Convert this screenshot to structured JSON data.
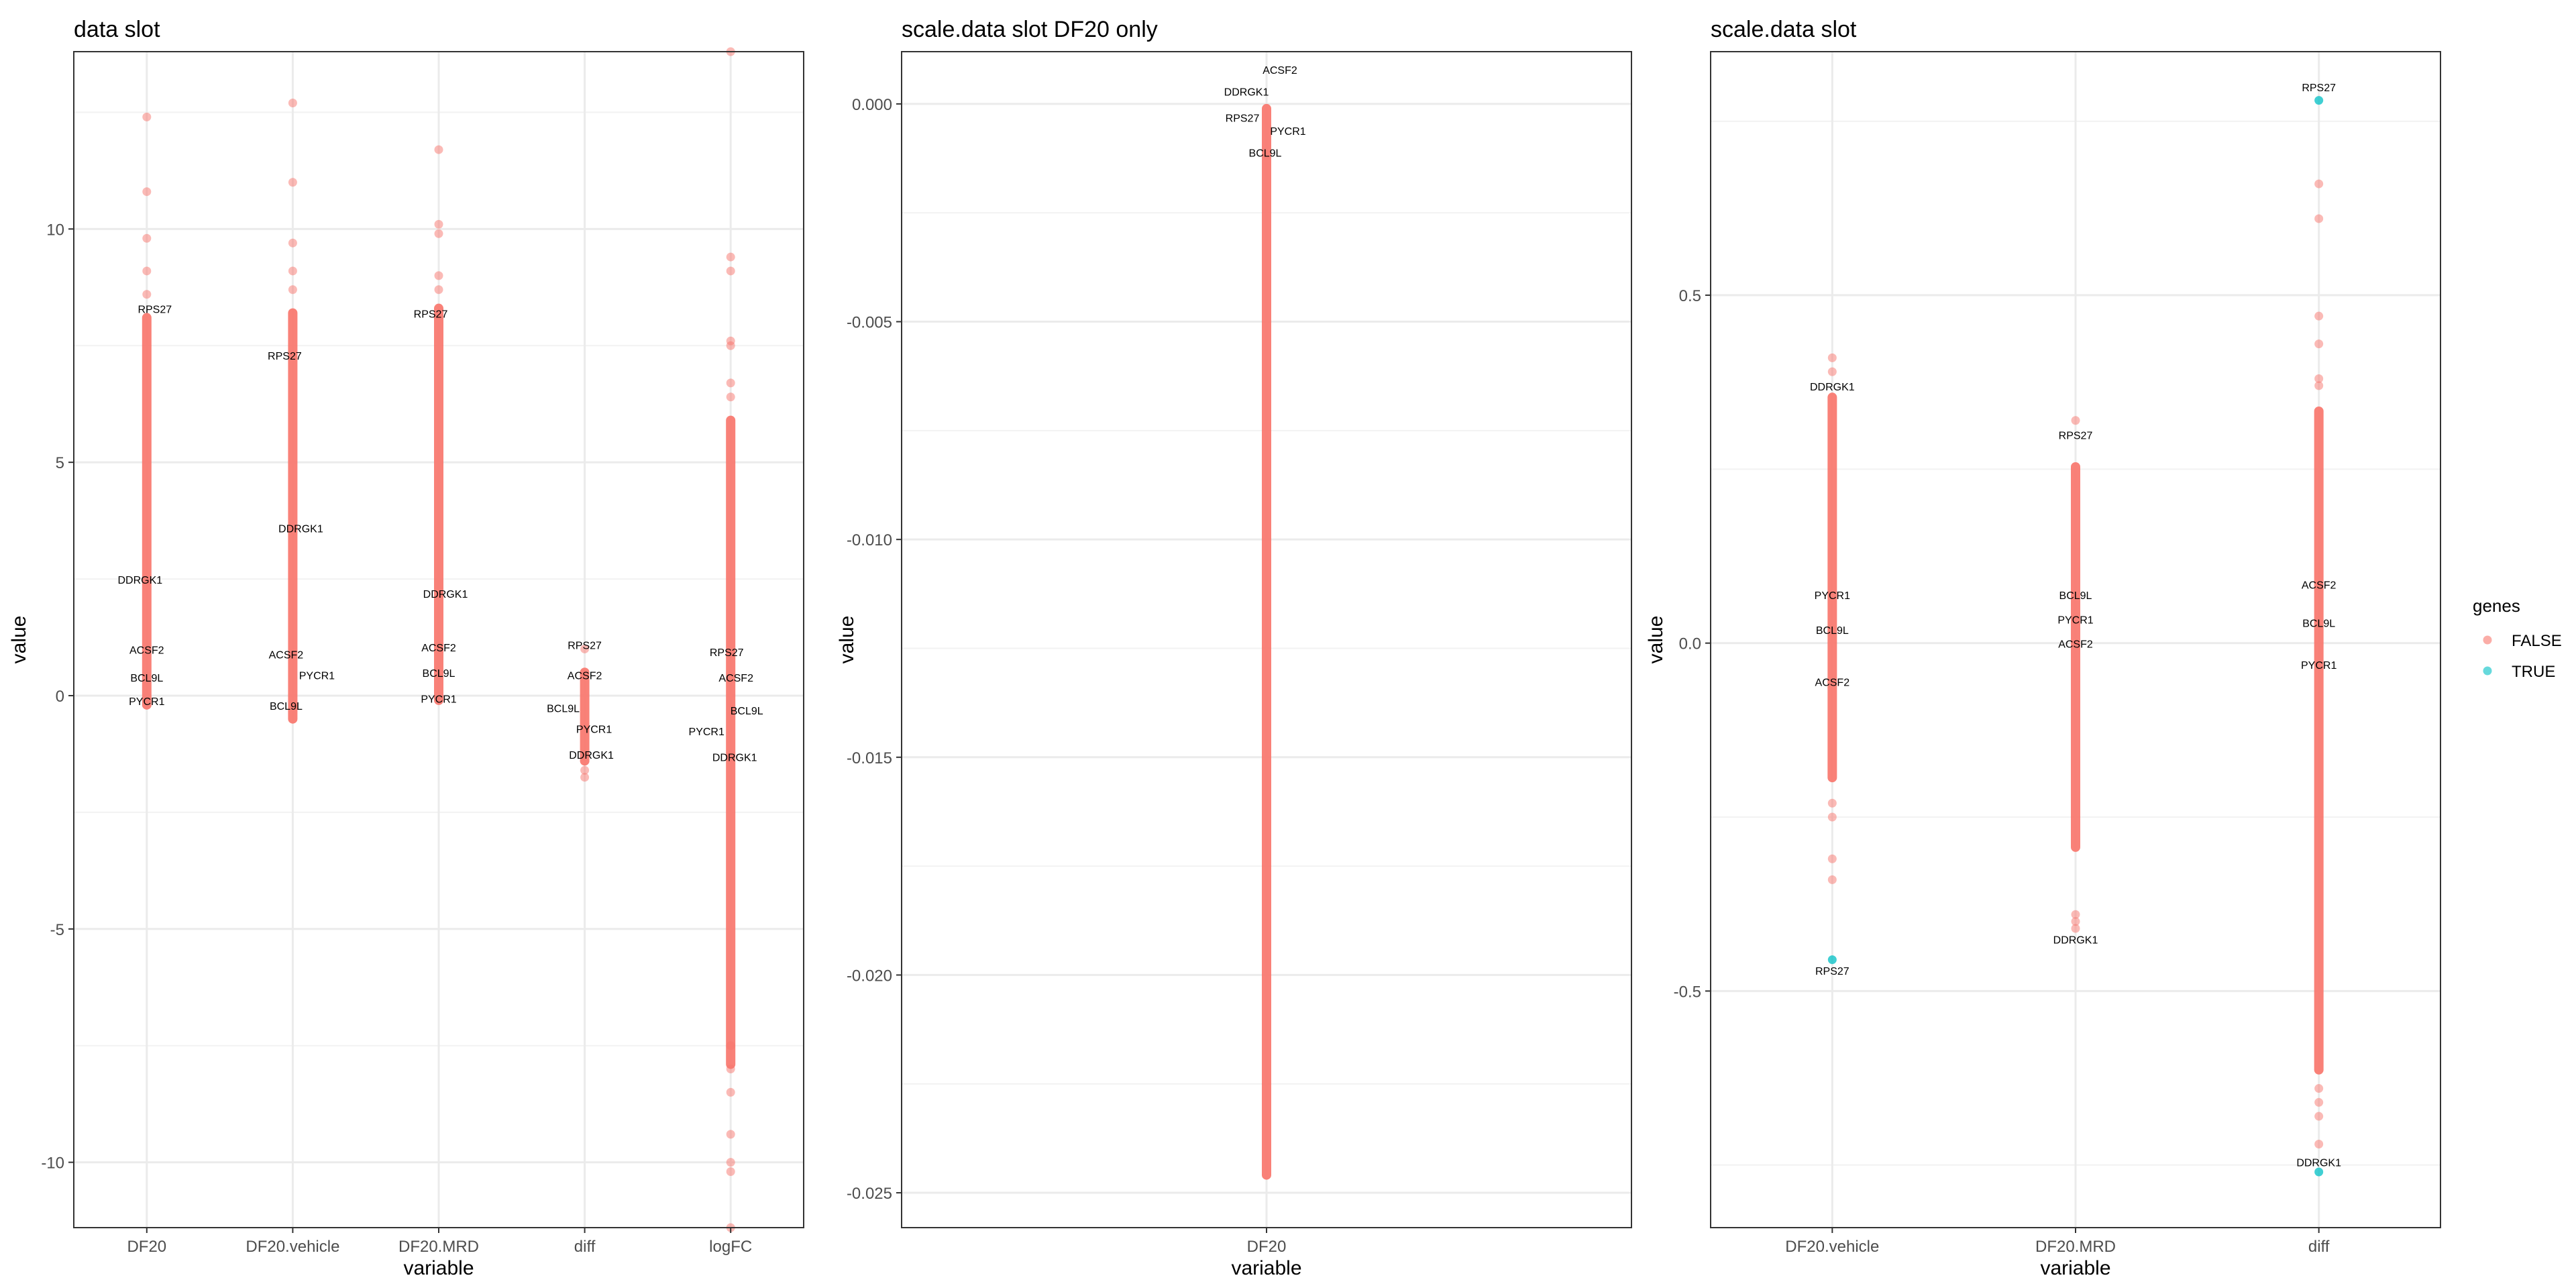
{
  "legend": {
    "title": "genes",
    "placement": "right",
    "entries": [
      {
        "label": "FALSE",
        "color": "#F8766D"
      },
      {
        "label": "TRUE",
        "color": "#00BFC4"
      }
    ]
  },
  "colors": {
    "false": "#F8766D",
    "true": "#00BFC4",
    "panel_border": "#333333",
    "grid": "#EBEBEB"
  },
  "chart_data": [
    {
      "type": "scatter",
      "title": "data slot",
      "xlabel": "variable",
      "ylabel": "value",
      "categories": [
        "DF20",
        "DF20.vehicle",
        "DF20.MRD",
        "diff",
        "logFC"
      ],
      "ylim": [
        -11.4,
        13.8
      ],
      "yticks": [
        -10,
        -5,
        0,
        5,
        10
      ],
      "ytick_labels": [
        "-10",
        "-5",
        "0",
        "5",
        "10"
      ],
      "grid": true,
      "bands": [
        {
          "min": -0.3,
          "max": 8.2
        },
        {
          "min": -0.6,
          "max": 8.3
        },
        {
          "min": -0.2,
          "max": 8.4
        },
        {
          "min": -1.5,
          "max": 0.6
        },
        {
          "min": -8.0,
          "max": 6.0
        }
      ],
      "points": [
        {
          "x": "DF20",
          "y": 12.4,
          "gene": false
        },
        {
          "x": "DF20",
          "y": 10.8,
          "gene": false
        },
        {
          "x": "DF20",
          "y": 9.8,
          "gene": false
        },
        {
          "x": "DF20",
          "y": 9.1,
          "gene": false
        },
        {
          "x": "DF20",
          "y": 8.6,
          "gene": false
        },
        {
          "x": "DF20.vehicle",
          "y": 12.7,
          "gene": false
        },
        {
          "x": "DF20.vehicle",
          "y": 11.0,
          "gene": false
        },
        {
          "x": "DF20.vehicle",
          "y": 9.7,
          "gene": false
        },
        {
          "x": "DF20.vehicle",
          "y": 9.1,
          "gene": false
        },
        {
          "x": "DF20.vehicle",
          "y": 8.7,
          "gene": false
        },
        {
          "x": "DF20.MRD",
          "y": 11.7,
          "gene": false
        },
        {
          "x": "DF20.MRD",
          "y": 10.1,
          "gene": false
        },
        {
          "x": "DF20.MRD",
          "y": 9.9,
          "gene": false
        },
        {
          "x": "DF20.MRD",
          "y": 9.0,
          "gene": false
        },
        {
          "x": "DF20.MRD",
          "y": 8.7,
          "gene": false
        },
        {
          "x": "diff",
          "y": 1.0,
          "gene": false
        },
        {
          "x": "diff",
          "y": -1.6,
          "gene": false
        },
        {
          "x": "diff",
          "y": -1.75,
          "gene": false
        },
        {
          "x": "logFC",
          "y": 13.8,
          "gene": false
        },
        {
          "x": "logFC",
          "y": 9.4,
          "gene": false
        },
        {
          "x": "logFC",
          "y": 9.1,
          "gene": false
        },
        {
          "x": "logFC",
          "y": 7.6,
          "gene": false
        },
        {
          "x": "logFC",
          "y": 7.5,
          "gene": false
        },
        {
          "x": "logFC",
          "y": 6.7,
          "gene": false
        },
        {
          "x": "logFC",
          "y": 6.4,
          "gene": false
        },
        {
          "x": "logFC",
          "y": -8.5,
          "gene": false
        },
        {
          "x": "logFC",
          "y": -8.0,
          "gene": false
        },
        {
          "x": "logFC",
          "y": -7.5,
          "gene": false
        },
        {
          "x": "logFC",
          "y": -9.4,
          "gene": false
        },
        {
          "x": "logFC",
          "y": -10.0,
          "gene": false
        },
        {
          "x": "logFC",
          "y": -10.2,
          "gene": false
        },
        {
          "x": "logFC",
          "y": -11.4,
          "gene": false
        }
      ],
      "labels": [
        {
          "x": "DF20",
          "text": "RPS27",
          "y": 8.3
        },
        {
          "x": "DF20",
          "text": "DDRGK1",
          "y": 2.5
        },
        {
          "x": "DF20",
          "text": "ACSF2",
          "y": 1.0
        },
        {
          "x": "DF20",
          "text": "BCL9L",
          "y": 0.4
        },
        {
          "x": "DF20",
          "text": "PYCR1",
          "y": -0.1
        },
        {
          "x": "DF20.vehicle",
          "text": "RPS27",
          "y": 7.3
        },
        {
          "x": "DF20.vehicle",
          "text": "DDRGK1",
          "y": 3.6
        },
        {
          "x": "DF20.vehicle",
          "text": "ACSF2",
          "y": 0.9
        },
        {
          "x": "DF20.vehicle",
          "text": "PYCR1",
          "y": 0.45
        },
        {
          "x": "DF20.vehicle",
          "text": "BCL9L",
          "y": -0.2
        },
        {
          "x": "DF20.MRD",
          "text": "RPS27",
          "y": 8.2
        },
        {
          "x": "DF20.MRD",
          "text": "DDRGK1",
          "y": 2.2
        },
        {
          "x": "DF20.MRD",
          "text": "ACSF2",
          "y": 1.05
        },
        {
          "x": "DF20.MRD",
          "text": "BCL9L",
          "y": 0.5
        },
        {
          "x": "DF20.MRD",
          "text": "PYCR1",
          "y": -0.05
        },
        {
          "x": "diff",
          "text": "RPS27",
          "y": 1.1
        },
        {
          "x": "diff",
          "text": "ACSF2",
          "y": 0.45
        },
        {
          "x": "diff",
          "text": "BCL9L",
          "y": -0.25
        },
        {
          "x": "diff",
          "text": "PYCR1",
          "y": -0.7
        },
        {
          "x": "diff",
          "text": "DDRGK1",
          "y": -1.25
        },
        {
          "x": "logFC",
          "text": "RPS27",
          "y": 0.95
        },
        {
          "x": "logFC",
          "text": "ACSF2",
          "y": 0.4
        },
        {
          "x": "logFC",
          "text": "BCL9L",
          "y": -0.3
        },
        {
          "x": "logFC",
          "text": "PYCR1",
          "y": -0.75
        },
        {
          "x": "logFC",
          "text": "DDRGK1",
          "y": -1.3
        }
      ]
    },
    {
      "type": "scatter",
      "title": "scale.data slot DF20 only",
      "xlabel": "variable",
      "ylabel": "value",
      "categories": [
        "DF20"
      ],
      "ylim": [
        -0.0258,
        0.0012
      ],
      "yticks": [
        0,
        -0.005,
        -0.01,
        -0.015,
        -0.02,
        -0.025
      ],
      "ytick_labels": [
        "0.000",
        "-0.005",
        "-0.010",
        "-0.015",
        "-0.020",
        "-0.025"
      ],
      "grid": true,
      "bands": [
        {
          "min": -0.0247,
          "max": 0.0
        }
      ],
      "points": [],
      "labels": [
        {
          "x": "DF20",
          "text": "ACSF2",
          "y": 0.0008
        },
        {
          "x": "DF20",
          "text": "DDRGK1",
          "y": 0.0003
        },
        {
          "x": "DF20",
          "text": "RPS27",
          "y": -0.0003
        },
        {
          "x": "DF20",
          "text": "PYCR1",
          "y": -0.0006
        },
        {
          "x": "DF20",
          "text": "BCL9L",
          "y": -0.0011
        }
      ]
    },
    {
      "type": "scatter",
      "title": "scale.data slot",
      "xlabel": "variable",
      "ylabel": "value",
      "categories": [
        "DF20.vehicle",
        "DF20.MRD",
        "diff"
      ],
      "ylim": [
        -0.84,
        0.85
      ],
      "yticks": [
        -0.5,
        0,
        0.5
      ],
      "ytick_labels": [
        "-0.5",
        "0.0",
        "0.5"
      ],
      "grid": true,
      "bands": [
        {
          "min": -0.2,
          "max": 0.36
        },
        {
          "min": -0.3,
          "max": 0.26
        },
        {
          "min": -0.62,
          "max": 0.34
        }
      ],
      "points": [
        {
          "x": "DF20.vehicle",
          "y": 0.41,
          "gene": false
        },
        {
          "x": "DF20.vehicle",
          "y": 0.39,
          "gene": false
        },
        {
          "x": "DF20.vehicle",
          "y": -0.23,
          "gene": false
        },
        {
          "x": "DF20.vehicle",
          "y": -0.25,
          "gene": false
        },
        {
          "x": "DF20.vehicle",
          "y": -0.31,
          "gene": false
        },
        {
          "x": "DF20.vehicle",
          "y": -0.34,
          "gene": false
        },
        {
          "x": "DF20.vehicle",
          "y": -0.455,
          "gene": true
        },
        {
          "x": "DF20.MRD",
          "y": 0.32,
          "gene": false
        },
        {
          "x": "DF20.MRD",
          "y": -0.39,
          "gene": false
        },
        {
          "x": "DF20.MRD",
          "y": -0.4,
          "gene": false
        },
        {
          "x": "DF20.MRD",
          "y": -0.41,
          "gene": false
        },
        {
          "x": "diff",
          "y": 0.78,
          "gene": true
        },
        {
          "x": "diff",
          "y": 0.66,
          "gene": false
        },
        {
          "x": "diff",
          "y": 0.61,
          "gene": false
        },
        {
          "x": "diff",
          "y": 0.47,
          "gene": false
        },
        {
          "x": "diff",
          "y": 0.43,
          "gene": false
        },
        {
          "x": "diff",
          "y": 0.38,
          "gene": false
        },
        {
          "x": "diff",
          "y": 0.37,
          "gene": false
        },
        {
          "x": "diff",
          "y": -0.64,
          "gene": false
        },
        {
          "x": "diff",
          "y": -0.66,
          "gene": false
        },
        {
          "x": "diff",
          "y": -0.68,
          "gene": false
        },
        {
          "x": "diff",
          "y": -0.72,
          "gene": false
        },
        {
          "x": "diff",
          "y": -0.76,
          "gene": true
        }
      ],
      "labels": [
        {
          "x": "DF20.vehicle",
          "text": "DDRGK1",
          "y": 0.37
        },
        {
          "x": "DF20.vehicle",
          "text": "PYCR1",
          "y": 0.07
        },
        {
          "x": "DF20.vehicle",
          "text": "BCL9L",
          "y": 0.02
        },
        {
          "x": "DF20.vehicle",
          "text": "ACSF2",
          "y": -0.055
        },
        {
          "x": "DF20.vehicle",
          "text": "RPS27",
          "y": -0.47
        },
        {
          "x": "DF20.MRD",
          "text": "RPS27",
          "y": 0.3
        },
        {
          "x": "DF20.MRD",
          "text": "BCL9L",
          "y": 0.07
        },
        {
          "x": "DF20.MRD",
          "text": "PYCR1",
          "y": 0.035
        },
        {
          "x": "DF20.MRD",
          "text": "ACSF2",
          "y": 0.0
        },
        {
          "x": "DF20.MRD",
          "text": "DDRGK1",
          "y": -0.425
        },
        {
          "x": "diff",
          "text": "RPS27",
          "y": 0.8
        },
        {
          "x": "diff",
          "text": "ACSF2",
          "y": 0.085
        },
        {
          "x": "diff",
          "text": "BCL9L",
          "y": 0.03
        },
        {
          "x": "diff",
          "text": "PYCR1",
          "y": -0.03
        },
        {
          "x": "diff",
          "text": "DDRGK1",
          "y": -0.745
        }
      ]
    }
  ]
}
